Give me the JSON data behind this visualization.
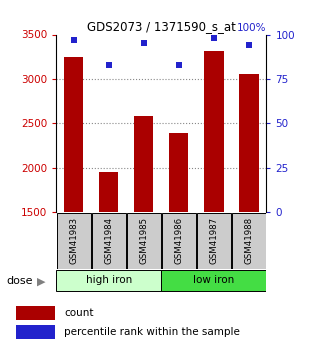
{
  "title": "GDS2073 / 1371590_s_at",
  "samples": [
    "GSM41983",
    "GSM41984",
    "GSM41985",
    "GSM41986",
    "GSM41987",
    "GSM41988"
  ],
  "bar_values": [
    3250,
    1950,
    2580,
    2390,
    3310,
    3050
  ],
  "percentile_values": [
    97,
    83,
    95,
    83,
    98,
    94
  ],
  "ylim_left": [
    1500,
    3500
  ],
  "ylim_right": [
    0,
    100
  ],
  "yticks_left": [
    1500,
    2000,
    2500,
    3000,
    3500
  ],
  "yticks_right": [
    0,
    25,
    50,
    75,
    100
  ],
  "bar_color": "#aa0000",
  "dot_color": "#2222cc",
  "group1_label": "high iron",
  "group2_label": "low iron",
  "group1_color": "#ccffcc",
  "group2_color": "#44dd44",
  "group1_indices": [
    0,
    1,
    2
  ],
  "group2_indices": [
    3,
    4,
    5
  ],
  "dose_label": "dose",
  "legend_bar_label": "count",
  "legend_dot_label": "percentile rank within the sample",
  "grid_color": "#888888",
  "background_color": "#ffffff",
  "label_color_left": "#cc0000",
  "label_color_right": "#2222cc",
  "sample_box_color": "#cccccc"
}
